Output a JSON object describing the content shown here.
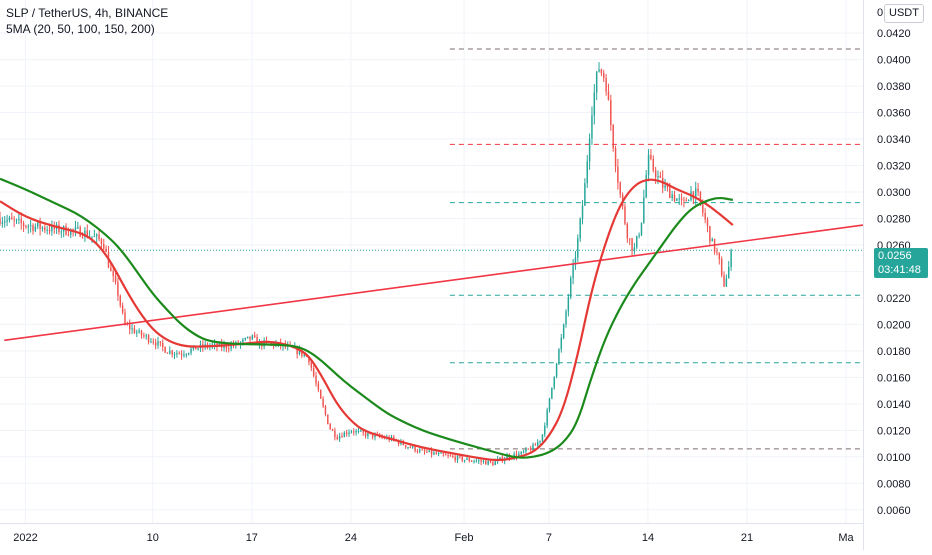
{
  "header": {
    "title": "SLP / TetherUS, 4h, BINANCE",
    "indicator": "5MA (20, 50, 100, 150, 200)"
  },
  "price_axis": {
    "currency": "USDT",
    "top_clipped_label": "0",
    "current_price": "0.0256",
    "countdown": "03:41:48"
  },
  "colors": {
    "up": "#26a69a",
    "down": "#ef5350",
    "ma_fast": "#e53935",
    "ma_slow": "#1b8a1b",
    "trendline": "#f23645",
    "price_line": "#26a69a"
  },
  "chart_data": {
    "type": "candlestick",
    "title": "SLP / TetherUS, 4h, BINANCE",
    "timeframe": "4h",
    "ylim": [
      0.005,
      0.0445
    ],
    "y_ticks": [
      "0.0060",
      "0.0080",
      "0.0100",
      "0.0120",
      "0.0140",
      "0.0160",
      "0.0180",
      "0.0200",
      "0.0220",
      "0.0240",
      "0.0260",
      "0.0280",
      "0.0300",
      "0.0320",
      "0.0340",
      "0.0360",
      "0.0380",
      "0.0400",
      "0.0420"
    ],
    "x_labels": [
      {
        "label": "2022",
        "day": 0
      },
      {
        "label": "10",
        "day": 9
      },
      {
        "label": "17",
        "day": 16
      },
      {
        "label": "24",
        "day": 23
      },
      {
        "label": "Feb",
        "day": 31
      },
      {
        "label": "7",
        "day": 37
      },
      {
        "label": "14",
        "day": 44
      },
      {
        "label": "21",
        "day": 51
      },
      {
        "label": "Ma",
        "day": 58
      }
    ],
    "x_range_days": [
      -1.8,
      59.2
    ],
    "price_path": [
      [
        -1.8,
        0.028
      ],
      [
        0,
        0.0275
      ],
      [
        2,
        0.0272
      ],
      [
        4,
        0.027
      ],
      [
        5,
        0.0265
      ],
      [
        5.5,
        0.0262
      ],
      [
        6,
        0.024
      ],
      [
        6.5,
        0.0225
      ],
      [
        7,
        0.02
      ],
      [
        8,
        0.0193
      ],
      [
        9,
        0.0188
      ],
      [
        10,
        0.018
      ],
      [
        11,
        0.0178
      ],
      [
        12,
        0.0182
      ],
      [
        13,
        0.0184
      ],
      [
        14,
        0.0183
      ],
      [
        15,
        0.0185
      ],
      [
        16,
        0.019
      ],
      [
        16.5,
        0.0185
      ],
      [
        17,
        0.0186
      ],
      [
        18,
        0.0184
      ],
      [
        19,
        0.0181
      ],
      [
        20,
        0.0175
      ],
      [
        20.8,
        0.0145
      ],
      [
        21.5,
        0.0122
      ],
      [
        22,
        0.0115
      ],
      [
        23,
        0.012
      ],
      [
        24,
        0.0117
      ],
      [
        25,
        0.0115
      ],
      [
        26,
        0.0113
      ],
      [
        27,
        0.0108
      ],
      [
        28,
        0.0104
      ],
      [
        29,
        0.0102
      ],
      [
        30,
        0.01
      ],
      [
        31,
        0.0098
      ],
      [
        32,
        0.0097
      ],
      [
        33,
        0.0095
      ],
      [
        34,
        0.01
      ],
      [
        35,
        0.0102
      ],
      [
        36,
        0.0108
      ],
      [
        36.5,
        0.0115
      ],
      [
        37,
        0.014
      ],
      [
        37.5,
        0.017
      ],
      [
        38,
        0.0195
      ],
      [
        38.5,
        0.023
      ],
      [
        39,
        0.026
      ],
      [
        39.5,
        0.03
      ],
      [
        40,
        0.036
      ],
      [
        40.5,
        0.0395
      ],
      [
        41,
        0.0385
      ],
      [
        41.5,
        0.034
      ],
      [
        42,
        0.03
      ],
      [
        42.5,
        0.027
      ],
      [
        43,
        0.0255
      ],
      [
        43.5,
        0.0275
      ],
      [
        44,
        0.0325
      ],
      [
        44.5,
        0.0315
      ],
      [
        45,
        0.0305
      ],
      [
        45.5,
        0.03
      ],
      [
        46,
        0.0295
      ],
      [
        46.5,
        0.029
      ],
      [
        47,
        0.03
      ],
      [
        47.5,
        0.0298
      ],
      [
        48,
        0.028
      ],
      [
        48.5,
        0.0262
      ],
      [
        49,
        0.025
      ],
      [
        49.3,
        0.0228
      ],
      [
        49.6,
        0.0238
      ],
      [
        50,
        0.0256
      ]
    ],
    "candle_step_days": 0.1667,
    "series": [
      {
        "name": "MA 20",
        "points": [
          [
            -1.8,
            0.0293
          ],
          [
            0,
            0.0281
          ],
          [
            2,
            0.0274
          ],
          [
            4,
            0.0269
          ],
          [
            5,
            0.0262
          ],
          [
            6,
            0.0248
          ],
          [
            7,
            0.0228
          ],
          [
            8,
            0.021
          ],
          [
            9,
            0.0196
          ],
          [
            10,
            0.0188
          ],
          [
            11,
            0.0184
          ],
          [
            12,
            0.0183
          ],
          [
            14,
            0.0184
          ],
          [
            16,
            0.0186
          ],
          [
            17,
            0.0187
          ],
          [
            18,
            0.0186
          ],
          [
            19,
            0.0183
          ],
          [
            20,
            0.0177
          ],
          [
            21,
            0.016
          ],
          [
            22,
            0.014
          ],
          [
            23,
            0.0127
          ],
          [
            24,
            0.0119
          ],
          [
            26,
            0.0113
          ],
          [
            28,
            0.0107
          ],
          [
            30,
            0.0103
          ],
          [
            32,
            0.0099
          ],
          [
            33.5,
            0.0097
          ],
          [
            35,
            0.01
          ],
          [
            36,
            0.0104
          ],
          [
            37,
            0.0115
          ],
          [
            38,
            0.0135
          ],
          [
            39,
            0.0175
          ],
          [
            40,
            0.0225
          ],
          [
            41,
            0.0262
          ],
          [
            42,
            0.029
          ],
          [
            43,
            0.0305
          ],
          [
            44,
            0.031
          ],
          [
            45,
            0.0308
          ],
          [
            46,
            0.0302
          ],
          [
            47,
            0.0298
          ],
          [
            48,
            0.0292
          ],
          [
            49,
            0.0284
          ],
          [
            50,
            0.0275
          ]
        ]
      },
      {
        "name": "MA 50",
        "points": [
          [
            -1.8,
            0.031
          ],
          [
            0,
            0.0302
          ],
          [
            2,
            0.0292
          ],
          [
            4,
            0.0282
          ],
          [
            6,
            0.0265
          ],
          [
            7,
            0.0253
          ],
          [
            8,
            0.0238
          ],
          [
            9,
            0.0223
          ],
          [
            10,
            0.0211
          ],
          [
            11,
            0.02
          ],
          [
            12,
            0.0192
          ],
          [
            13,
            0.0187
          ],
          [
            15,
            0.0185
          ],
          [
            17,
            0.0185
          ],
          [
            19,
            0.0184
          ],
          [
            20,
            0.018
          ],
          [
            21,
            0.0172
          ],
          [
            22,
            0.0162
          ],
          [
            23,
            0.0153
          ],
          [
            24,
            0.0145
          ],
          [
            25,
            0.0137
          ],
          [
            26,
            0.013
          ],
          [
            28,
            0.012
          ],
          [
            30,
            0.0113
          ],
          [
            32,
            0.0107
          ],
          [
            34,
            0.0101
          ],
          [
            35,
            0.0099
          ],
          [
            36,
            0.01
          ],
          [
            37,
            0.0103
          ],
          [
            38,
            0.011
          ],
          [
            39,
            0.0125
          ],
          [
            40,
            0.016
          ],
          [
            41,
            0.019
          ],
          [
            42,
            0.0212
          ],
          [
            43,
            0.023
          ],
          [
            44,
            0.0245
          ],
          [
            45,
            0.026
          ],
          [
            46,
            0.0275
          ],
          [
            47,
            0.0287
          ],
          [
            48,
            0.0293
          ],
          [
            49,
            0.0296
          ],
          [
            50,
            0.0294
          ]
        ]
      }
    ],
    "trendline": {
      "from": [
        -1.5,
        0.0188
      ],
      "to": [
        59.2,
        0.0275
      ]
    },
    "horizontal_levels": [
      {
        "value": 0.0408,
        "color": "#7b6b6b",
        "from_day": 30
      },
      {
        "value": 0.0336,
        "color": "#f23645",
        "from_day": 30
      },
      {
        "value": 0.0292,
        "color": "#26a69a",
        "from_day": 30
      },
      {
        "value": 0.0256,
        "color": "#26a69a",
        "from_day": -1.8,
        "dotted": true
      },
      {
        "value": 0.0222,
        "color": "#26a69a",
        "from_day": 30
      },
      {
        "value": 0.0171,
        "color": "#26a69a",
        "from_day": 30
      },
      {
        "value": 0.0106,
        "color": "#7b6b6b",
        "from_day": 30
      }
    ],
    "xlabel": "",
    "ylabel": "",
    "grid": true,
    "legend": "top-left"
  }
}
